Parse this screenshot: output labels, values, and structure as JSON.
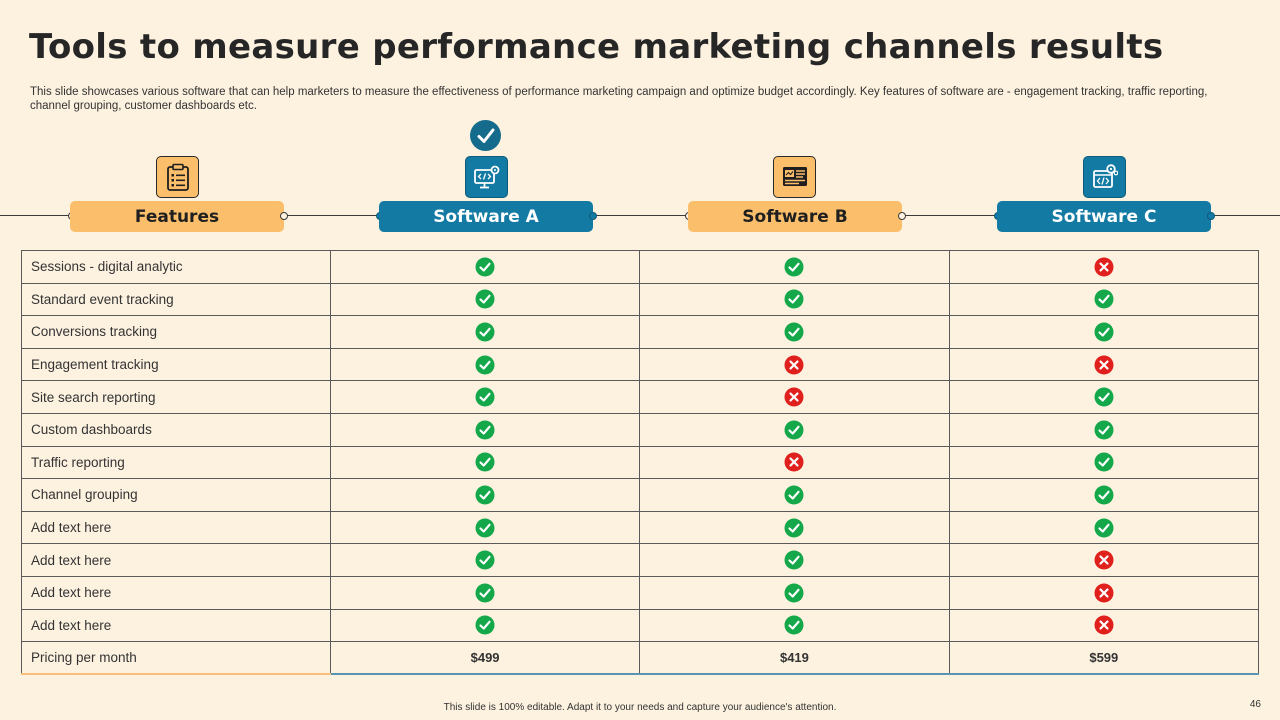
{
  "title": "Tools to measure performance marketing channels results",
  "subtitle": "This slide showcases various software that can help marketers to measure the effectiveness of performance marketing campaign and optimize budget accordingly. Key features of software are - engagement tracking, traffic reporting, channel grouping, customer dashboards etc.",
  "columns": [
    {
      "label": "Features",
      "icon": "clipboard-list-icon",
      "style": "orange"
    },
    {
      "label": "Software A",
      "icon": "monitor-code-gear-icon",
      "style": "blue"
    },
    {
      "label": "Software B",
      "icon": "dashboard-chart-icon",
      "style": "orange"
    },
    {
      "label": "Software C",
      "icon": "code-window-gear-icon",
      "style": "blue"
    }
  ],
  "selected_badge": "check-circle-icon",
  "rows": [
    {
      "feature": "Sessions - digital analytic",
      "a": true,
      "b": true,
      "c": false
    },
    {
      "feature": "Standard event tracking",
      "a": true,
      "b": true,
      "c": true
    },
    {
      "feature": "Conversions  tracking",
      "a": true,
      "b": true,
      "c": true
    },
    {
      "feature": "Engagement  tracking",
      "a": true,
      "b": false,
      "c": false
    },
    {
      "feature": "Site search reporting",
      "a": true,
      "b": false,
      "c": true
    },
    {
      "feature": "Custom dashboards",
      "a": true,
      "b": true,
      "c": true
    },
    {
      "feature": "Traffic  reporting",
      "a": true,
      "b": false,
      "c": true
    },
    {
      "feature": "Channel  grouping",
      "a": true,
      "b": true,
      "c": true
    },
    {
      "feature": "Add text here",
      "a": true,
      "b": true,
      "c": true
    },
    {
      "feature": "Add text here",
      "a": true,
      "b": true,
      "c": false
    },
    {
      "feature": "Add text here",
      "a": true,
      "b": true,
      "c": false
    },
    {
      "feature": "Add text here",
      "a": true,
      "b": true,
      "c": false
    }
  ],
  "pricing": {
    "label": "Pricing per month",
    "a": "$499",
    "b": "$419",
    "c": "$599"
  },
  "footer": "This slide is 100% editable.  Adapt it to your needs and capture your audience's attention.",
  "page_number": "46",
  "colors": {
    "background": "#fdf2e0",
    "orange": "#fbbf6c",
    "blue": "#137aa3",
    "check": "#14a84a",
    "cross": "#e0201c"
  }
}
